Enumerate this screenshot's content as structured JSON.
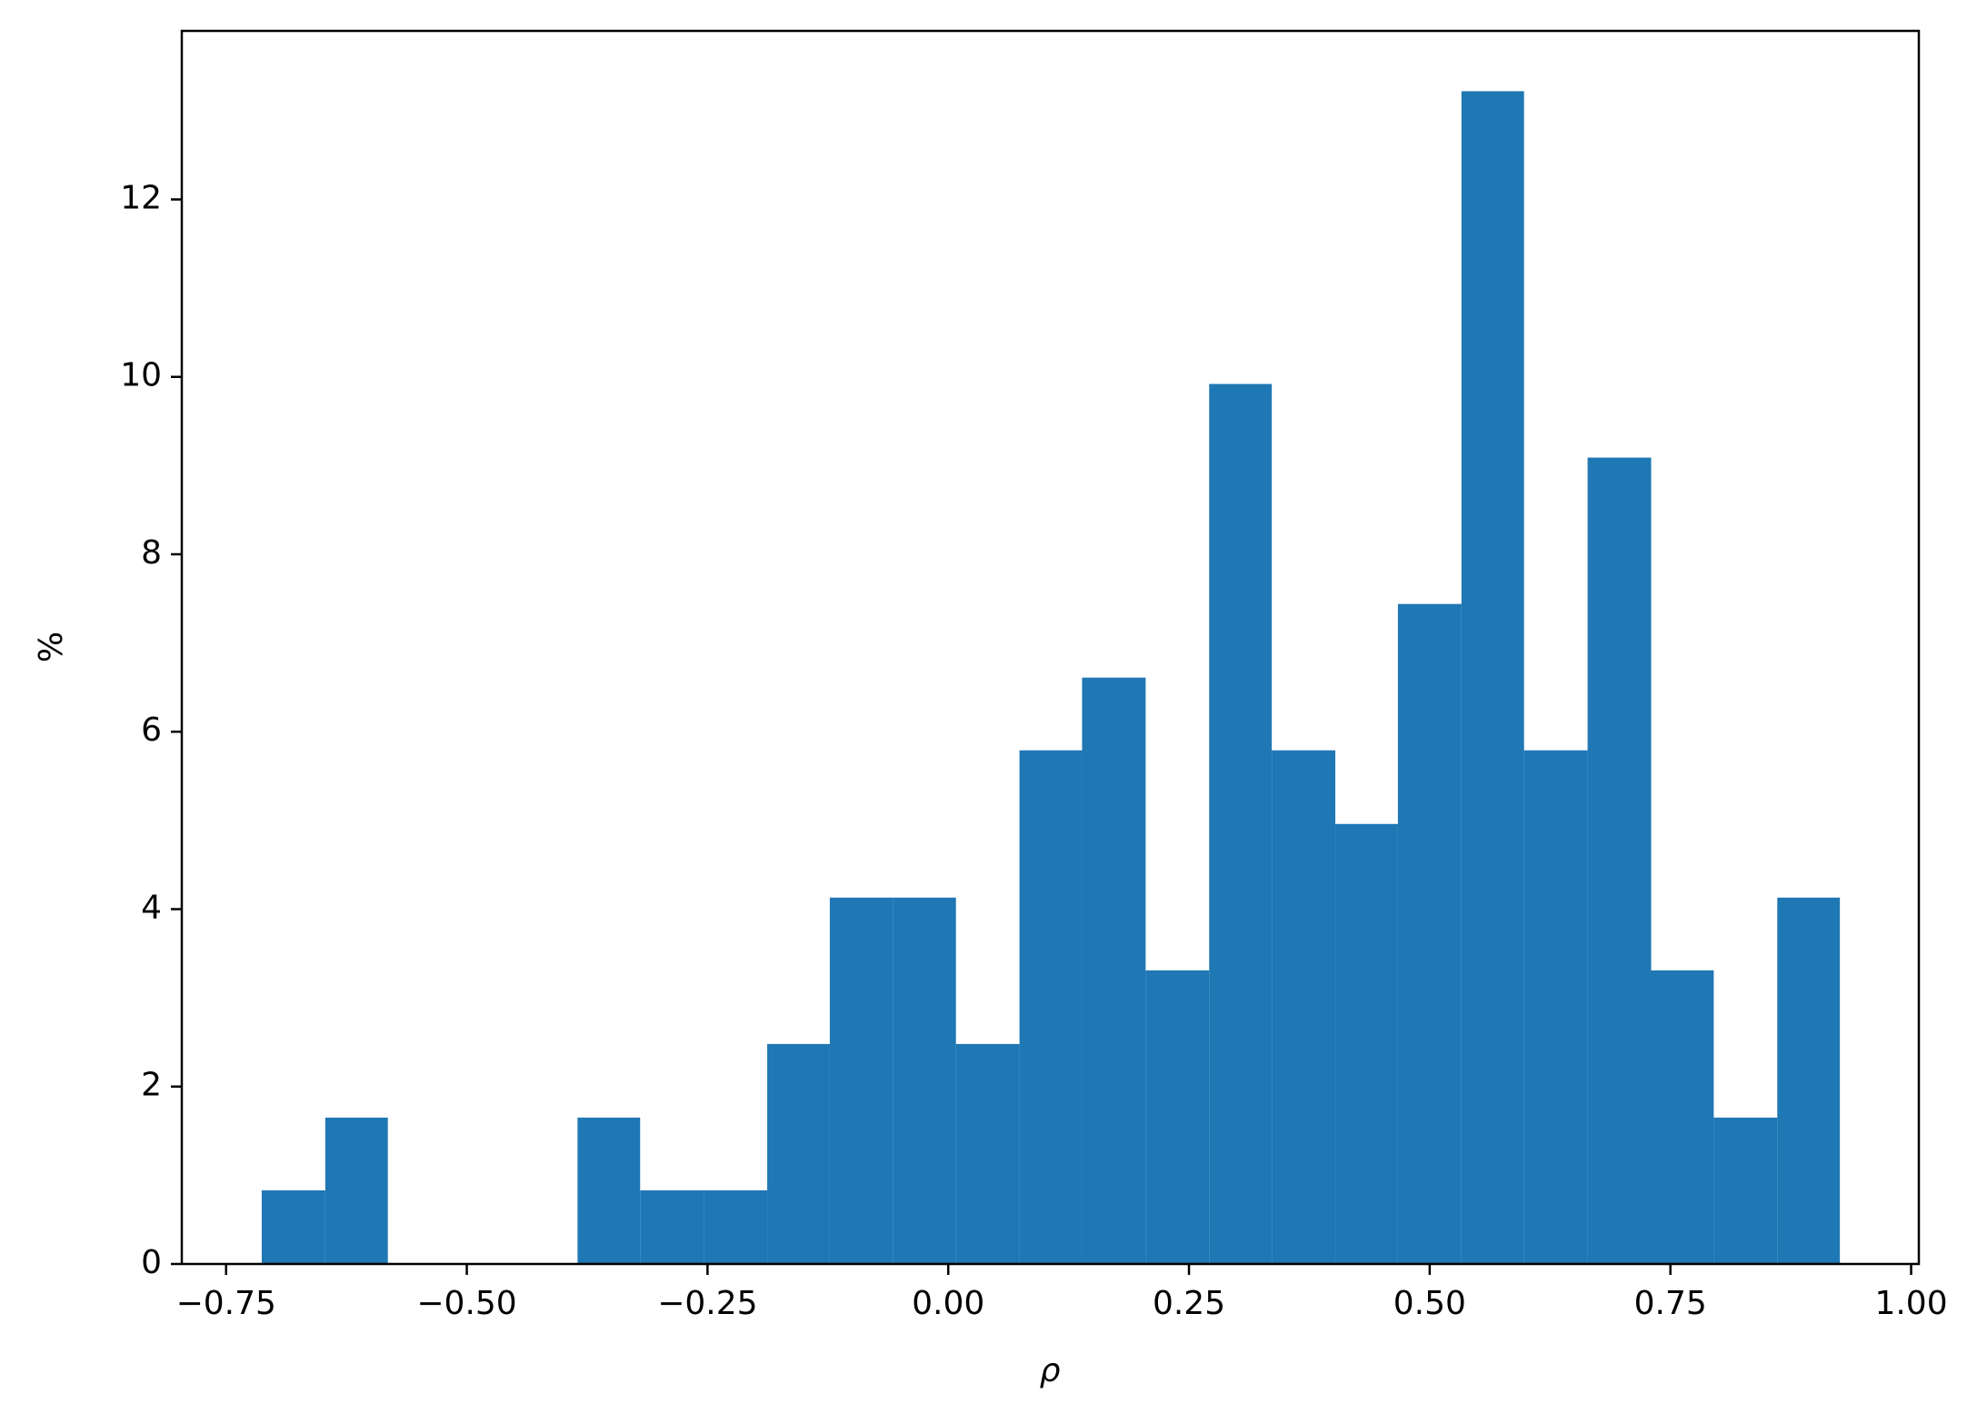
{
  "chart_data": {
    "type": "histogram",
    "xlabel": "ρ",
    "ylabel": "%",
    "color": "#1f77b4",
    "bins": [
      -0.713,
      -0.647,
      -0.582,
      -0.516,
      -0.451,
      -0.385,
      -0.32,
      -0.254,
      -0.188,
      -0.123,
      -0.057,
      0.008,
      0.074,
      0.139,
      0.205,
      0.271,
      0.336,
      0.402,
      0.467,
      0.533,
      0.598,
      0.664,
      0.73,
      0.795,
      0.861,
      0.926
    ],
    "values": [
      0.83,
      1.65,
      0,
      0,
      0,
      1.65,
      0.83,
      0.83,
      2.48,
      4.13,
      4.13,
      2.48,
      5.79,
      6.61,
      3.31,
      9.92,
      5.79,
      4.96,
      7.44,
      13.22,
      5.79,
      9.09,
      3.31,
      1.65,
      4.13
    ],
    "xlim": [
      -0.796,
      1.008
    ],
    "ylim": [
      0,
      13.9
    ],
    "xticks": [
      {
        "value": -0.75,
        "label": "−0.75"
      },
      {
        "value": -0.5,
        "label": "−0.50"
      },
      {
        "value": -0.25,
        "label": "−0.25"
      },
      {
        "value": 0,
        "label": "0.00"
      },
      0.25,
      {
        "value": 0.5,
        "label": "0.50"
      },
      0.75,
      {
        "value": 1,
        "label": "1.00"
      }
    ],
    "yticks": [
      0,
      2,
      4,
      6,
      8,
      10,
      12
    ]
  }
}
